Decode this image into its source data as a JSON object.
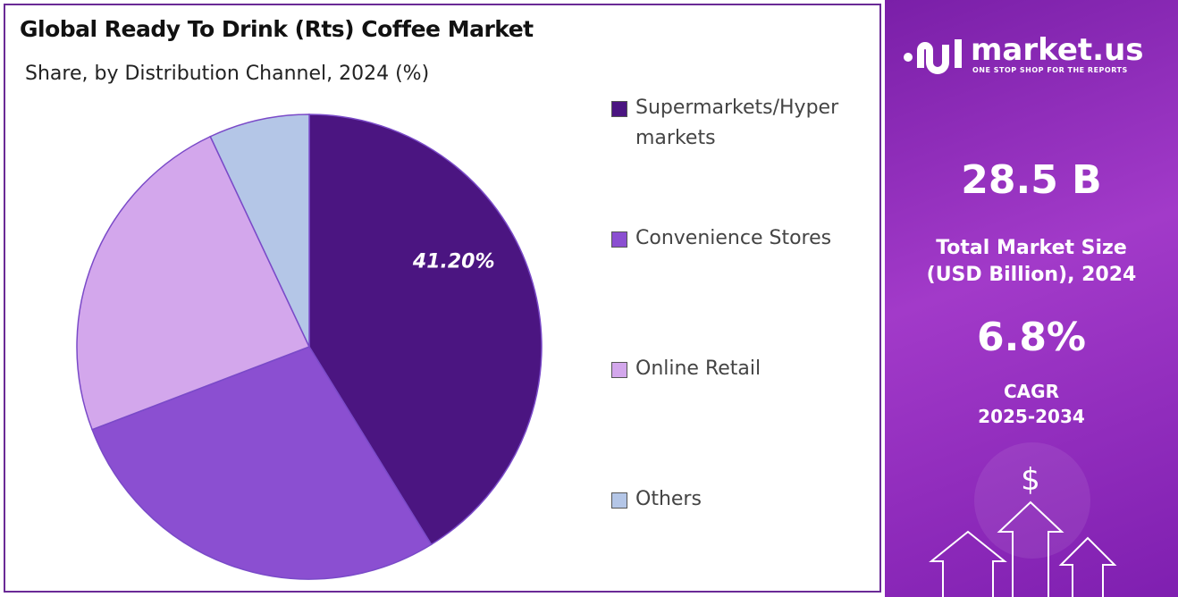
{
  "chart_data": {
    "type": "pie",
    "title": "Global Ready To Drink (Rts) Coffee Market",
    "subtitle": "Share, by Distribution Channel, 2024 (%)",
    "categories": [
      "Supermarkets/Hyper markets",
      "Convenience Stores",
      "Online Retail",
      "Others"
    ],
    "values": [
      41.2,
      28.0,
      23.8,
      7.0
    ],
    "value_labels": [
      "41.20%",
      null,
      null,
      null
    ],
    "colors": [
      "#4b1581",
      "#8b4fd1",
      "#d3a7ec",
      "#b4c6e7"
    ]
  },
  "side_panel": {
    "brand": "market.us",
    "tagline": "ONE STOP SHOP FOR THE REPORTS",
    "market_size": "28.5 B",
    "market_size_label": [
      "Total Market Size",
      "(USD Billion), 2024"
    ],
    "cagr": "6.8%",
    "cagr_label": [
      "CAGR",
      "2025-2034"
    ]
  }
}
